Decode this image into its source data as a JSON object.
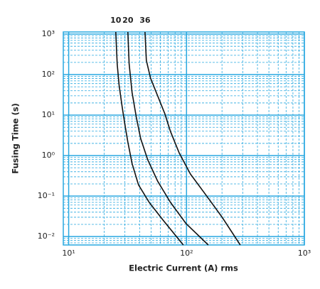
{
  "chart_data": {
    "type": "line",
    "x_label": "Electric Current (A) rms",
    "y_label": "Fusing Time (s)",
    "log_x": true,
    "log_y": true,
    "grid": true,
    "grid_color": "#29a8e0",
    "xlim": [
      9,
      1000
    ],
    "ylim": [
      0.0062,
      1130
    ],
    "xticks": [
      {
        "value": 10,
        "label": "10¹"
      },
      {
        "value": 100,
        "label": "10²"
      },
      {
        "value": 1000,
        "label": "10³"
      }
    ],
    "yticks": [
      {
        "value": 0.01,
        "label": "10⁻²"
      },
      {
        "value": 0.1,
        "label": "10⁻¹"
      },
      {
        "value": 1,
        "label": "10⁰"
      },
      {
        "value": 10,
        "label": "10¹"
      },
      {
        "value": 100,
        "label": "10²"
      },
      {
        "value": 1000,
        "label": "10³"
      }
    ],
    "series": [
      {
        "name": "10",
        "color": "#111111",
        "x": [
          25.1,
          25.8,
          26.8,
          28.4,
          30,
          31.8,
          34.5,
          39.1,
          48.2,
          63.6,
          94
        ],
        "values": [
          1130,
          183,
          54.6,
          16.3,
          5.9,
          2.15,
          0.64,
          0.19,
          0.07,
          0.025,
          0.0062
        ]
      },
      {
        "name": "20",
        "color": "#111111",
        "x": [
          31.8,
          32.6,
          34.5,
          37.5,
          40.8,
          46.9,
          56.9,
          73.1,
          99.3,
          153
        ],
        "values": [
          1130,
          183,
          36.4,
          8.85,
          2.64,
          0.785,
          0.233,
          0.07,
          0.0207,
          0.0062
        ]
      },
      {
        "name": "36",
        "color": "#111111",
        "x": [
          44.4,
          45.6,
          49.5,
          56.9,
          65.5,
          73.1,
          86.5,
          108,
          147,
          199,
          286
        ],
        "values": [
          1130,
          224,
          81.7,
          29.8,
          10.8,
          3.95,
          1.17,
          0.35,
          0.104,
          0.031,
          0.0062
        ]
      }
    ]
  }
}
